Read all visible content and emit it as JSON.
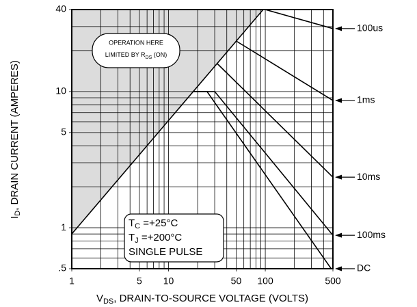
{
  "chart_data": {
    "type": "line",
    "xlabel": {
      "main": "V",
      "sub": "DS",
      "rest": ", DRAIN-TO-SOURCE VOLTAGE (VOLTS)"
    },
    "ylabel": {
      "main": "I",
      "sub": "D",
      "rest": ", DRAIN CURRENT (AMPERES)"
    },
    "log_x": true,
    "log_y": true,
    "grid": true,
    "xlim": [
      1,
      500
    ],
    "ylim": [
      0.5,
      40
    ],
    "xticks": [
      1,
      5,
      10,
      50,
      100,
      500
    ],
    "yticks": [
      {
        "value": 0.5,
        "label": ".5"
      },
      1,
      5,
      10,
      40
    ],
    "xgrid": [
      2,
      3,
      4,
      5,
      6,
      7,
      8,
      9,
      10,
      20,
      30,
      40,
      50,
      60,
      70,
      80,
      90,
      100,
      200,
      300,
      400
    ],
    "ygrid": [
      0.6,
      0.7,
      0.8,
      0.9,
      1,
      2,
      3,
      4,
      5,
      6,
      7,
      8,
      9,
      10,
      20,
      30
    ],
    "shade_color": "#dcdcdc",
    "series": [
      {
        "color": "#000000",
        "x": [
          1,
          95
        ],
        "values": [
          0.9,
          40
        ]
      },
      {
        "name": "100us",
        "color": "#000000",
        "x": [
          100,
          500
        ],
        "values": [
          40,
          29
        ]
      },
      {
        "name": "1ms",
        "color": "#000000",
        "x": [
          50,
          500
        ],
        "values": [
          23.5,
          8.6
        ]
      },
      {
        "name": "10ms",
        "color": "#000000",
        "x": [
          32,
          500
        ],
        "values": [
          16,
          2.35
        ]
      },
      {
        "name": "100ms",
        "color": "#000000",
        "x": [
          18,
          30,
          500
        ],
        "values": [
          10,
          10,
          0.88
        ]
      },
      {
        "name": "DC",
        "color": "#000000",
        "x": [
          18,
          25,
          480
        ],
        "values": [
          10,
          10,
          0.5
        ]
      }
    ],
    "annotations": {
      "limit": {
        "line1": "OPERATION HERE",
        "line2": "LIMITED BY R",
        "sub": "DS",
        "rest": " (ON)"
      },
      "conditions": [
        {
          "main": "T",
          "sub": "C",
          "rest": " =+25°C"
        },
        {
          "main": "T",
          "sub": "J",
          "rest": " =+200°C"
        },
        {
          "main": "SINGLE PULSE"
        }
      ]
    }
  }
}
